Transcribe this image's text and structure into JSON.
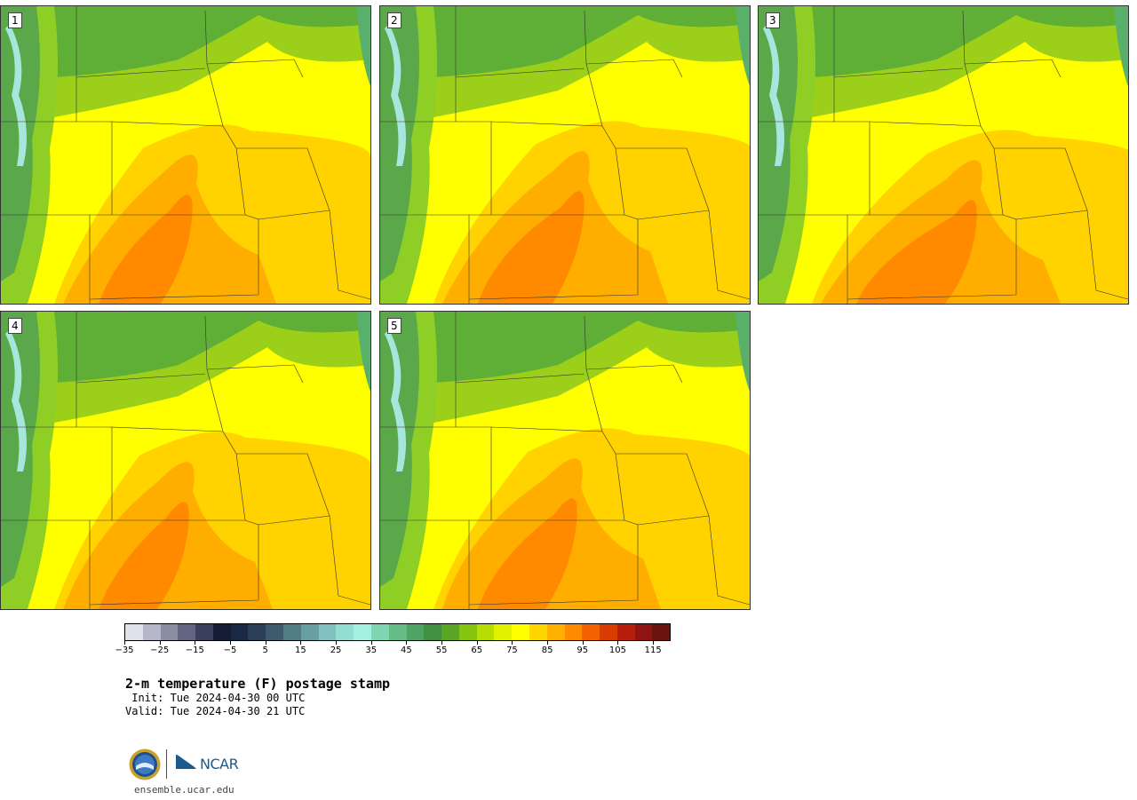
{
  "title": "2-m temperature (F) postage stamp",
  "init_line": " Init: Tue 2024-04-30 00 UTC",
  "valid_line": "Valid: Tue 2024-04-30 21 UTC",
  "website": "ensemble.ucar.edu",
  "logos": {
    "nsf": "NSF",
    "ncar": "NCAR"
  },
  "panels": [
    {
      "label": "1"
    },
    {
      "label": "2"
    },
    {
      "label": "3"
    },
    {
      "label": "4"
    },
    {
      "label": "5"
    }
  ],
  "colorbar": {
    "min": -35,
    "max": 120,
    "step": 5,
    "tick_labels": [
      "−35",
      "−25",
      "−15",
      "−5",
      "5",
      "15",
      "25",
      "35",
      "45",
      "55",
      "65",
      "75",
      "85",
      "95",
      "105",
      "115"
    ],
    "colors": [
      "#dfe0e9",
      "#b6b7c8",
      "#8b8da3",
      "#616581",
      "#3a3f5c",
      "#141d35",
      "#1c2946",
      "#2a3e58",
      "#3d5b6d",
      "#527d85",
      "#68a0a1",
      "#80c1bf",
      "#93ddd3",
      "#a5f0e2",
      "#7ed6b2",
      "#64bd86",
      "#4ea462",
      "#3f9140",
      "#5aa623",
      "#87c40f",
      "#b7dd04",
      "#e3f000",
      "#ffff00",
      "#ffd500",
      "#ffb000",
      "#ff8a00",
      "#f36200",
      "#d83c00",
      "#b51d0c",
      "#8f1512",
      "#6a1410"
    ]
  }
}
